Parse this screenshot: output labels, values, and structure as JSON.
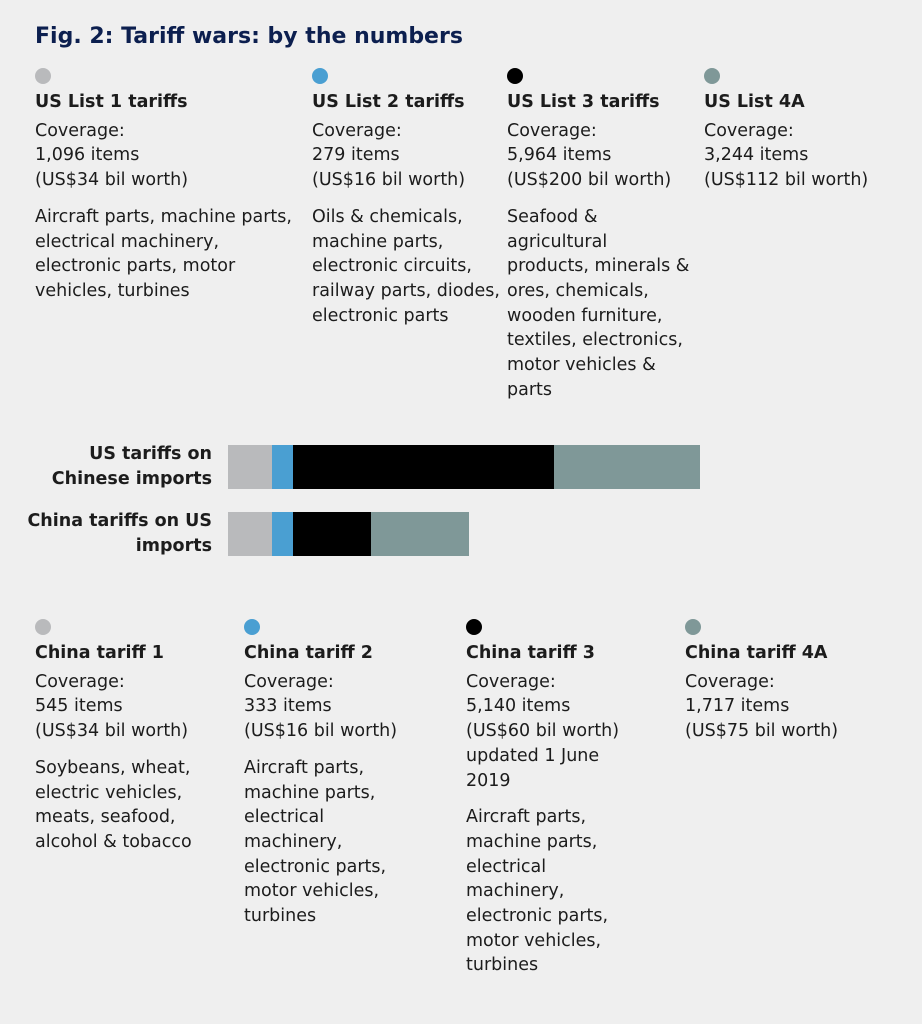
{
  "chart_data": {
    "type": "bar",
    "orientation": "horizontal",
    "stacked": true,
    "title": "Fig. 2: Tariff wars: by the numbers",
    "categories": [
      "US tariffs on Chinese imports",
      "China tariffs on US imports"
    ],
    "series": [
      {
        "color": "#b9babc",
        "values": [
          34,
          34
        ],
        "value_labels": [
          "(US$34 bil worth)",
          "(US$34 bil worth)"
        ]
      },
      {
        "color": "#4a9fd2",
        "values": [
          16,
          16
        ],
        "value_labels": [
          "(US$16 bil worth)",
          "(US$16 bil worth)"
        ]
      },
      {
        "color": "#000000",
        "values": [
          200,
          60
        ],
        "value_labels": [
          "(US$200 bil worth)",
          "(US$60 bil worth)"
        ]
      },
      {
        "color": "#7f9898",
        "values": [
          112,
          75
        ],
        "value_labels": [
          "(US$112 bil worth)",
          "(US$75 bil worth)"
        ]
      }
    ],
    "panels": [
      [
        {
          "title": "US List 1 tariffs",
          "coverage": "Coverage:",
          "items": "1,096 items",
          "description": "Aircraft parts, machine parts, electrical machinery, electronic parts, motor vehicles, turbines"
        },
        {
          "title": "US List 2 tariffs",
          "coverage": "Coverage:",
          "items": "279 items",
          "description": "Oils & chemicals, machine parts, electronic circuits, railway parts, diodes, electronic parts"
        },
        {
          "title": "US List 3 tariffs",
          "coverage": "Coverage:",
          "items": "5,964 items",
          "description": "Seafood & agricultural products, minerals & ores, chemicals, wooden furniture, textiles, electronics, motor vehicles & parts"
        },
        {
          "title": "US List 4A",
          "coverage": "Coverage:",
          "items": "3,244 items"
        }
      ],
      [
        {
          "title": "China tariff 1",
          "coverage": "Coverage:",
          "items": "545 items",
          "description": "Soybeans, wheat, electric vehicles, meats, seafood, alcohol & tobacco"
        },
        {
          "title": "China tariff 2",
          "coverage": "Coverage:",
          "items": "333 items",
          "description": "Aircraft parts, machine parts, electrical machinery, electronic parts, motor vehicles, turbines"
        },
        {
          "title": "China tariff 3",
          "coverage": "Coverage:",
          "items": "5,140 items",
          "note": "updated 1 June 2019",
          "description": "Aircraft parts, machine parts, electrical machinery, electronic parts, motor vehicles, turbines"
        },
        {
          "title": "China tariff 4A",
          "coverage": "Coverage:",
          "items": "1,717 items"
        }
      ]
    ]
  }
}
